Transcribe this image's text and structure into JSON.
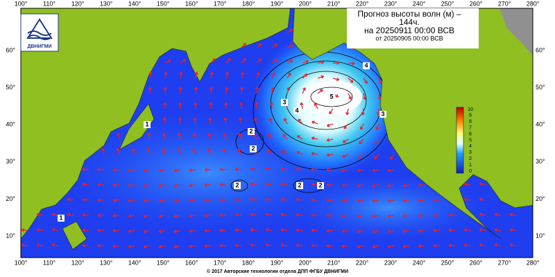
{
  "header": {
    "title_lines": [
      "Прогноз высоты волн (м) –",
      "144ч.",
      "на 20250911 00:00 ВСВ",
      "от 20250905 00:00 ВСВ"
    ]
  },
  "logo": {
    "text": "ДВНИГМИ"
  },
  "map": {
    "longitude_labels": [
      "100°",
      "110°",
      "120°",
      "130°",
      "140°",
      "150°",
      "160°",
      "170°",
      "180°",
      "190°",
      "200°",
      "210°",
      "220°",
      "230°",
      "240°",
      "250°",
      "260°",
      "270°",
      "280°"
    ],
    "latitude_labels": [
      "10°",
      "20°",
      "30°",
      "40°",
      "50°",
      "60°"
    ],
    "colorbar_labels": [
      "0",
      "1",
      "2",
      "3",
      "4",
      "5",
      "6",
      "7",
      "8",
      "9",
      "10"
    ],
    "contour_labels": [
      "3",
      "4",
      "5",
      "4",
      "3",
      "2",
      "2",
      "2",
      "2",
      "2",
      "1",
      "1"
    ]
  },
  "footer": {
    "copyright": "© 2017 Авторские технологии отдела ДПП ФГБУ ДВНИГМИ"
  }
}
